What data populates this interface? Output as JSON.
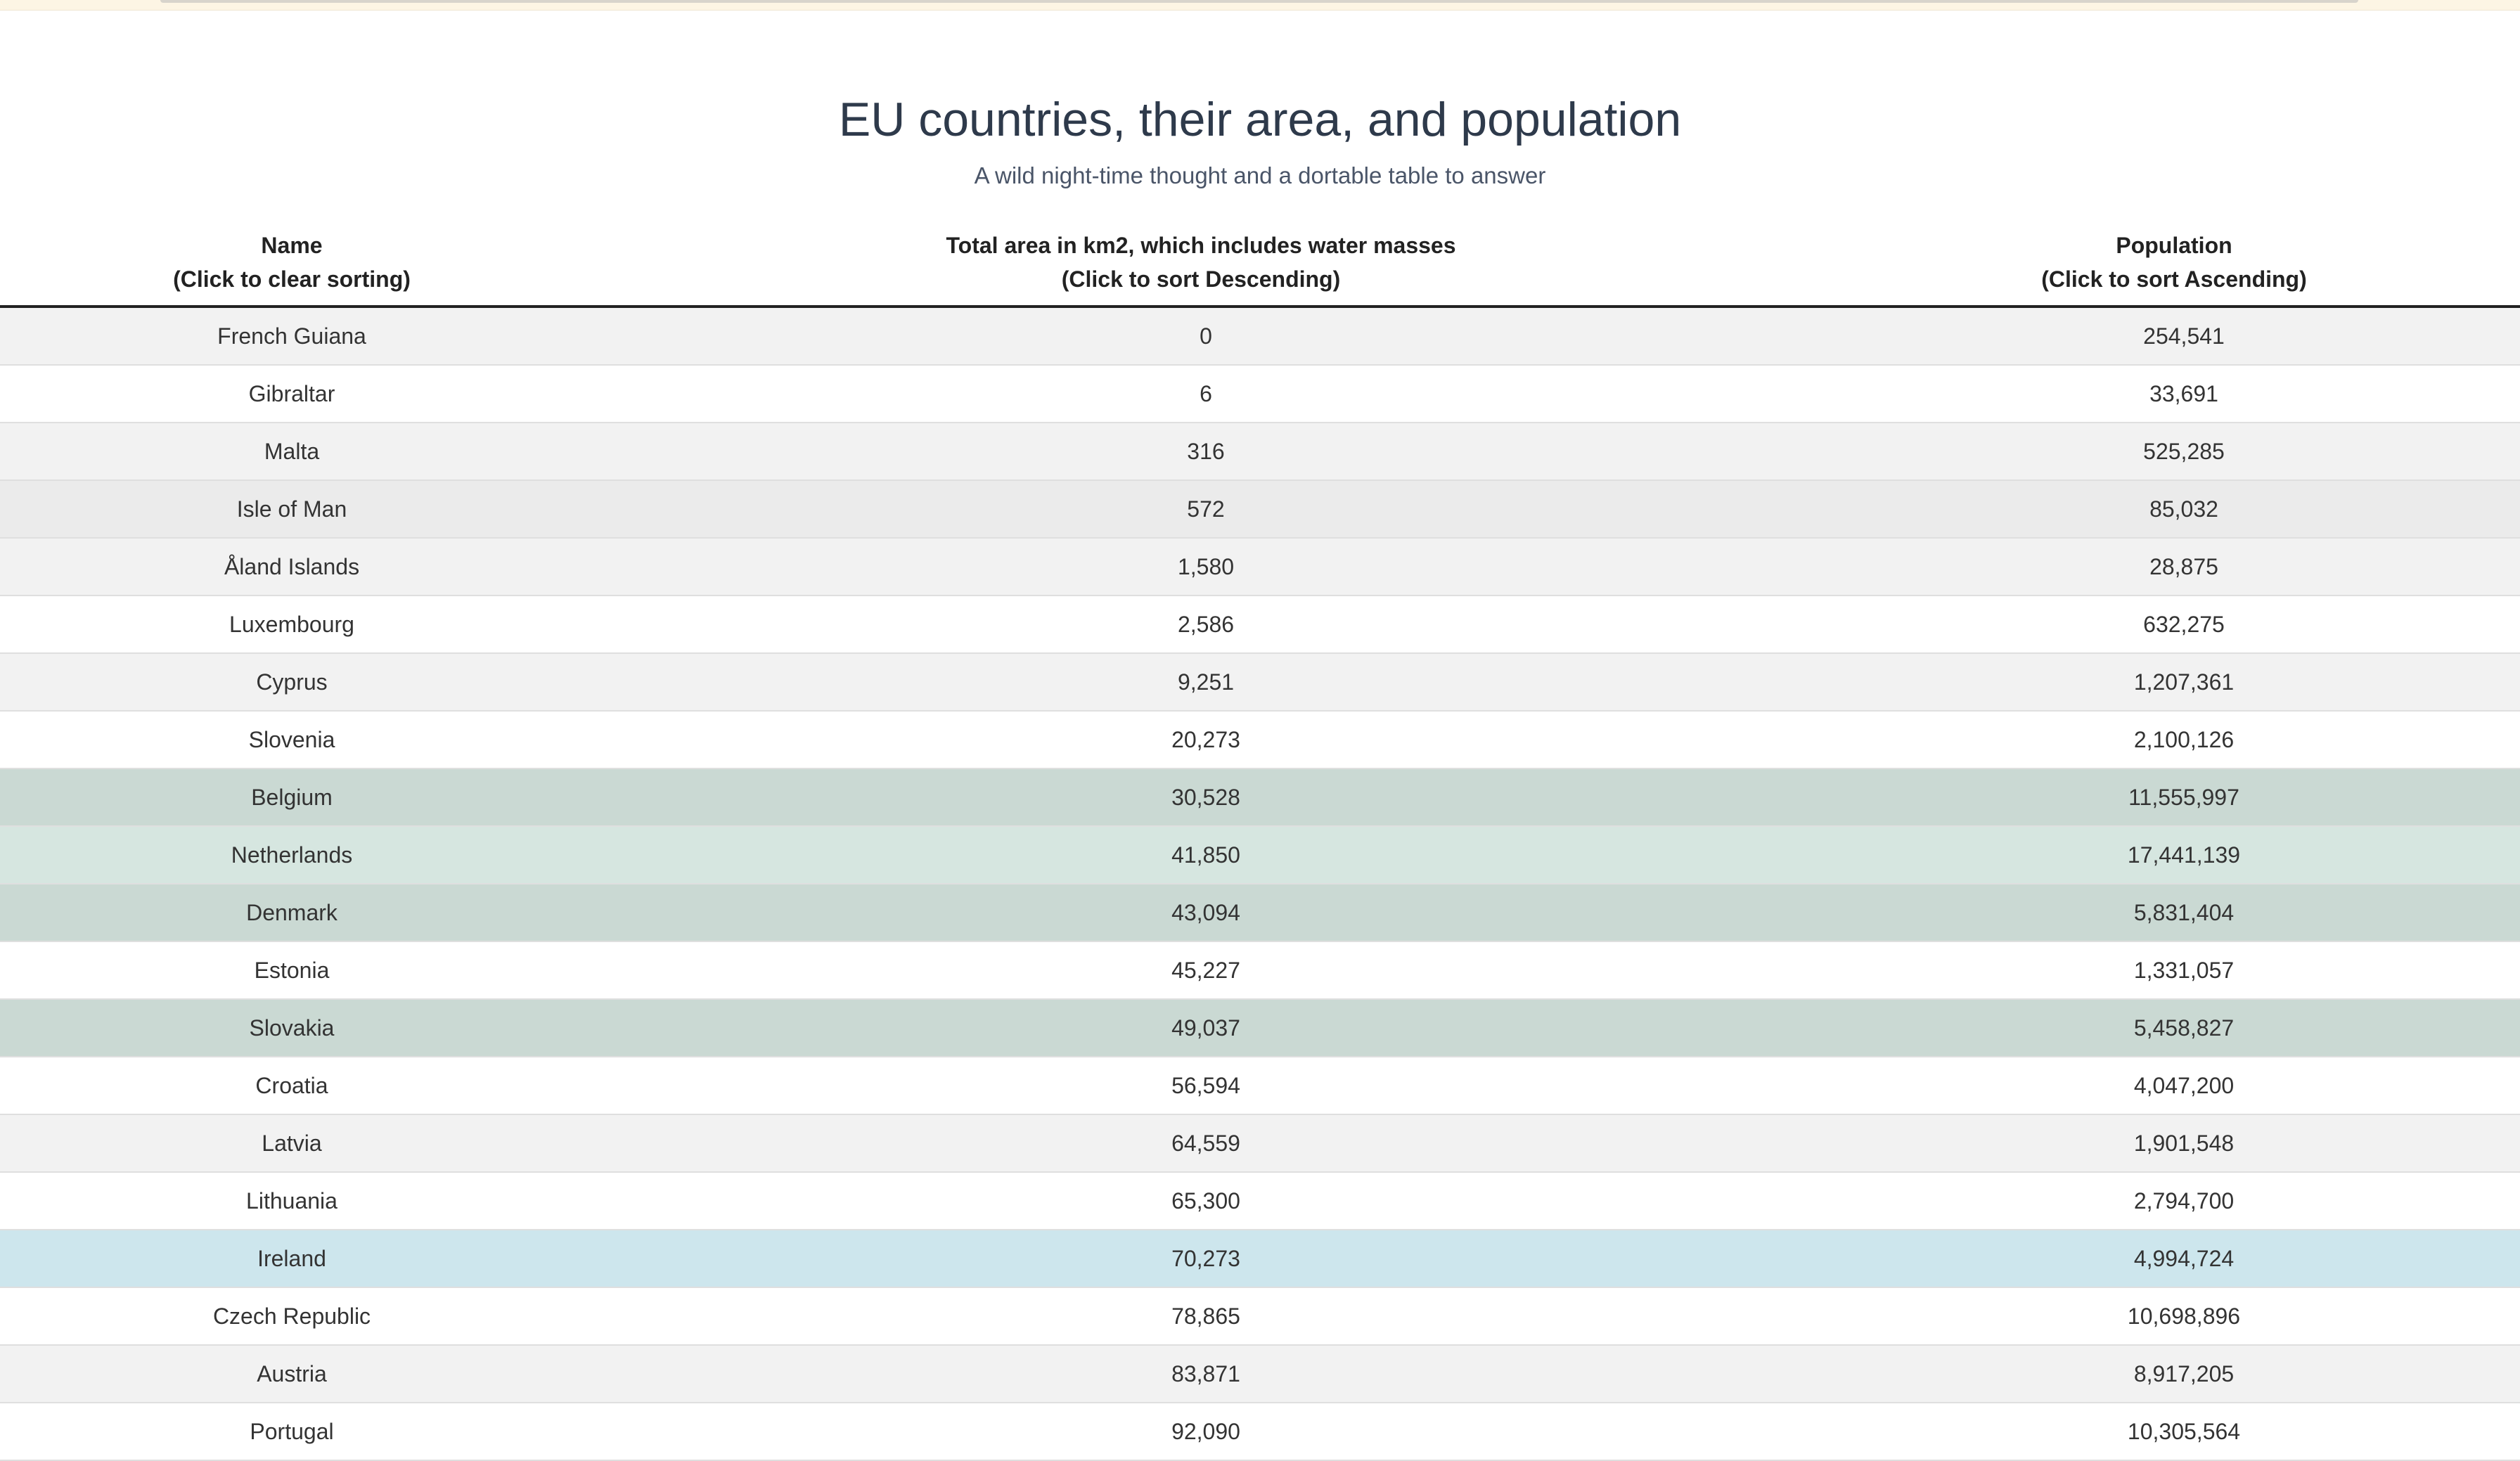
{
  "page": {
    "title": "EU countries, their area, and population",
    "subtitle": "A wild night-time thought and a dortable table to answer"
  },
  "table": {
    "headers": {
      "name": {
        "line1": "Name",
        "line2": "(Click to clear sorting)"
      },
      "area": {
        "line1": "Total area in km2, which includes water masses",
        "line2": "(Click to sort Descending)"
      },
      "population": {
        "line1": "Population",
        "line2": "(Click to sort Ascending)"
      }
    },
    "rows": [
      {
        "name": "French Guiana",
        "area": "0",
        "population": "254,541",
        "style": "odd"
      },
      {
        "name": "Gibraltar",
        "area": "6",
        "population": "33,691",
        "style": "even"
      },
      {
        "name": "Malta",
        "area": "316",
        "population": "525,285",
        "style": "odd"
      },
      {
        "name": "Isle of Man",
        "area": "572",
        "population": "85,032",
        "style": "hl-isle"
      },
      {
        "name": "Åland Islands",
        "area": "1,580",
        "population": "28,875",
        "style": "odd"
      },
      {
        "name": "Luxembourg",
        "area": "2,586",
        "population": "632,275",
        "style": "even"
      },
      {
        "name": "Cyprus",
        "area": "9,251",
        "population": "1,207,361",
        "style": "odd"
      },
      {
        "name": "Slovenia",
        "area": "20,273",
        "population": "2,100,126",
        "style": "even"
      },
      {
        "name": "Belgium",
        "area": "30,528",
        "population": "11,555,997",
        "style": "hl-green"
      },
      {
        "name": "Netherlands",
        "area": "41,850",
        "population": "17,441,139",
        "style": "hl-green-light"
      },
      {
        "name": "Denmark",
        "area": "43,094",
        "population": "5,831,404",
        "style": "hl-green"
      },
      {
        "name": "Estonia",
        "area": "45,227",
        "population": "1,331,057",
        "style": "even"
      },
      {
        "name": "Slovakia",
        "area": "49,037",
        "population": "5,458,827",
        "style": "hl-green"
      },
      {
        "name": "Croatia",
        "area": "56,594",
        "population": "4,047,200",
        "style": "even"
      },
      {
        "name": "Latvia",
        "area": "64,559",
        "population": "1,901,548",
        "style": "odd"
      },
      {
        "name": "Lithuania",
        "area": "65,300",
        "population": "2,794,700",
        "style": "even"
      },
      {
        "name": "Ireland",
        "area": "70,273",
        "population": "4,994,724",
        "style": "hl-blue"
      },
      {
        "name": "Czech Republic",
        "area": "78,865",
        "population": "10,698,896",
        "style": "even"
      },
      {
        "name": "Austria",
        "area": "83,871",
        "population": "8,917,205",
        "style": "odd"
      },
      {
        "name": "Portugal",
        "area": "92,090",
        "population": "10,305,564",
        "style": "even"
      }
    ]
  },
  "colors": {
    "title": "#2e3a4b",
    "row_stripe": "#f2f2f2",
    "row_highlight_green": "#cad9d3",
    "row_highlight_green_light": "#d6e6e0",
    "row_highlight_blue": "#cde6ed",
    "top_banner": "#fdf5e4"
  }
}
